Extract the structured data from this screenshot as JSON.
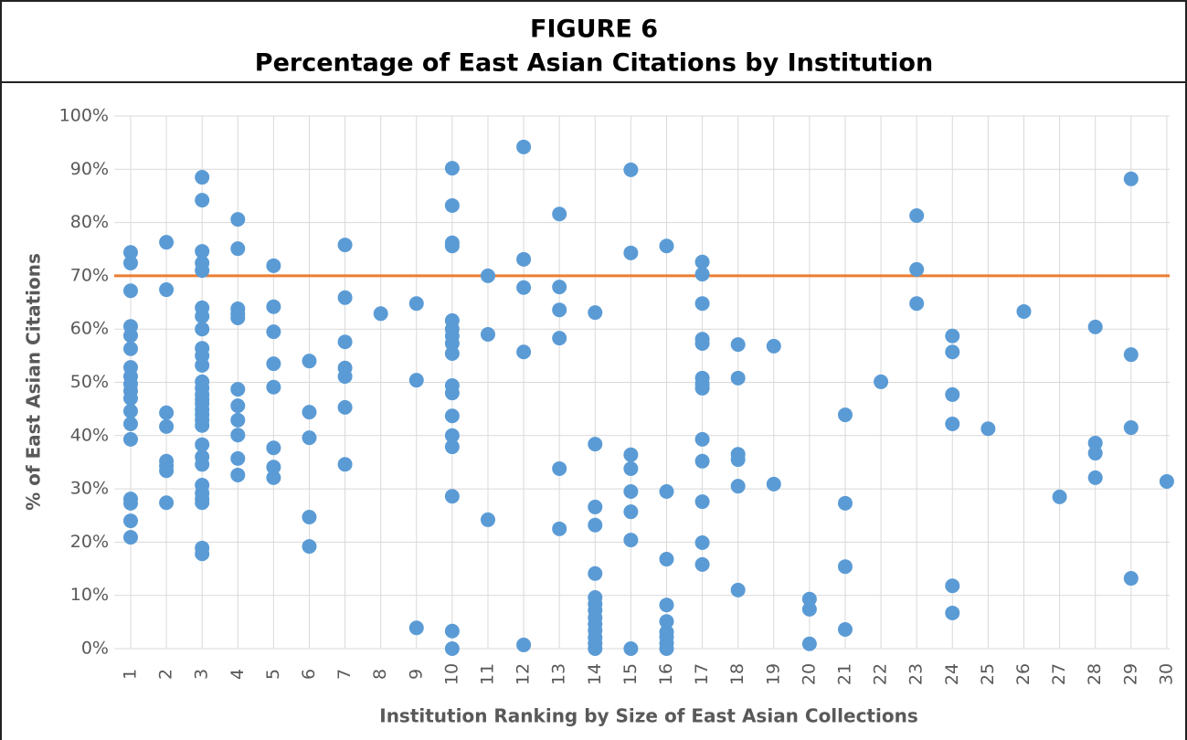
{
  "chart_data": {
    "type": "scatter",
    "figure_label": "FIGURE 6",
    "title": "Percentage of East Asian Citations by Institution",
    "x_label": "Institution Ranking by Size of East Asian Collections",
    "y_label": "% of East Asian Citations",
    "color": "#5b9bd5",
    "reference_line": {
      "value": 70,
      "color": "#ed7d31"
    },
    "grid": true,
    "xlim": [
      0.54,
      30.08
    ],
    "ylim": [
      0,
      100
    ],
    "xticks": [
      1,
      2,
      3,
      4,
      5,
      6,
      7,
      8,
      9,
      10,
      11,
      12,
      13,
      14,
      15,
      16,
      17,
      18,
      19,
      20,
      21,
      22,
      23,
      24,
      25,
      26,
      27,
      28,
      29,
      30
    ],
    "yticks": [
      {
        "value": 0,
        "label": "0%"
      },
      {
        "value": 10,
        "label": "10%"
      },
      {
        "value": 20,
        "label": "20%"
      },
      {
        "value": 30,
        "label": "30%"
      },
      {
        "value": 40,
        "label": "40%"
      },
      {
        "value": 50,
        "label": "50%"
      },
      {
        "value": 60,
        "label": "60%"
      },
      {
        "value": 70,
        "label": "70%"
      },
      {
        "value": 80,
        "label": "80%"
      },
      {
        "value": 90,
        "label": "90%"
      },
      {
        "value": 100,
        "label": "100%"
      }
    ],
    "x": [
      1,
      1,
      1,
      1,
      1,
      1,
      1,
      1,
      1,
      1,
      1,
      1,
      1,
      1,
      1,
      1,
      1,
      1,
      2,
      2,
      2,
      2,
      2,
      2,
      2,
      2,
      3,
      3,
      3,
      3,
      3,
      3,
      3,
      3,
      3,
      3,
      3,
      3,
      3,
      3,
      3,
      3,
      3,
      3,
      3,
      3,
      3,
      3,
      3,
      3,
      3,
      3,
      3,
      3,
      3,
      4,
      4,
      4,
      4,
      4,
      4,
      4,
      4,
      4,
      4,
      4,
      5,
      5,
      5,
      5,
      5,
      5,
      5,
      5,
      6,
      6,
      6,
      6,
      6,
      7,
      7,
      7,
      7,
      7,
      7,
      7,
      8,
      9,
      9,
      9,
      10,
      10,
      10,
      10,
      10,
      10,
      10,
      10,
      10,
      10,
      10,
      10,
      10,
      10,
      10,
      10,
      10,
      11,
      11,
      11,
      12,
      12,
      12,
      12,
      12,
      13,
      13,
      13,
      13,
      13,
      13,
      14,
      14,
      14,
      14,
      14,
      14,
      14,
      14,
      14,
      14,
      14,
      14,
      14,
      14,
      15,
      15,
      15,
      15,
      15,
      15,
      15,
      15,
      16,
      16,
      16,
      16,
      16,
      16,
      16,
      16,
      16,
      17,
      17,
      17,
      17,
      17,
      17,
      17,
      17,
      17,
      17,
      17,
      17,
      17,
      18,
      18,
      18,
      18,
      18,
      18,
      19,
      19,
      20,
      20,
      20,
      21,
      21,
      21,
      21,
      22,
      23,
      23,
      23,
      24,
      24,
      24,
      24,
      24,
      24,
      25,
      26,
      27,
      28,
      28,
      28,
      28,
      29,
      29,
      29,
      29,
      30
    ],
    "y": [
      74.4,
      72.4,
      67.2,
      60.5,
      58.8,
      56.3,
      52.8,
      51.1,
      49.7,
      48.4,
      47,
      44.6,
      42.2,
      39.3,
      28.1,
      27.3,
      24,
      20.9,
      76.3,
      67.4,
      44.3,
      41.7,
      35.2,
      34.3,
      33.4,
      27.4,
      88.5,
      84.2,
      74.6,
      72.4,
      71,
      64,
      62.4,
      60,
      56.4,
      55,
      53.2,
      50.1,
      48.9,
      47.7,
      46.8,
      46,
      44.9,
      43.9,
      42.9,
      41.9,
      38.3,
      36,
      34.6,
      30.7,
      29.2,
      28.1,
      27.4,
      18.9,
      17.8,
      80.6,
      75.1,
      63.8,
      62.9,
      62.1,
      48.7,
      45.6,
      42.9,
      40.1,
      35.7,
      32.6,
      71.9,
      64.2,
      59.5,
      53.5,
      49.1,
      37.7,
      34.1,
      32.1,
      54,
      44.4,
      39.6,
      24.7,
      19.2,
      75.8,
      65.9,
      57.6,
      52.7,
      51.1,
      45.3,
      34.6,
      62.9,
      64.8,
      50.4,
      3.9,
      90.2,
      83.2,
      76.2,
      75.6,
      61.6,
      60,
      58.7,
      57.3,
      55.4,
      49.4,
      48,
      43.7,
      40,
      37.9,
      28.6,
      3.3,
      0,
      70,
      59,
      24.2,
      94.2,
      73.1,
      67.8,
      55.7,
      0.7,
      81.6,
      67.9,
      63.6,
      58.3,
      33.8,
      22.5,
      63.1,
      38.4,
      26.6,
      23.2,
      14.1,
      9.6,
      8.4,
      7.2,
      5.8,
      4.6,
      3.4,
      2.1,
      1,
      0,
      89.9,
      74.3,
      36.4,
      33.8,
      29.5,
      25.7,
      20.4,
      0,
      75.6,
      29.5,
      16.8,
      8.2,
      5.1,
      3.1,
      2.2,
      1,
      0,
      72.6,
      70.3,
      64.8,
      58.1,
      57.3,
      50.8,
      49.7,
      48.9,
      39.3,
      35.2,
      27.6,
      19.9,
      15.8,
      57.1,
      50.8,
      36.5,
      35.5,
      30.5,
      11,
      56.8,
      30.9,
      9.3,
      7.4,
      0.9,
      43.9,
      27.3,
      15.4,
      3.6,
      50.1,
      81.3,
      71.2,
      64.8,
      58.7,
      55.7,
      47.7,
      42.2,
      11.8,
      6.7,
      41.3,
      63.3,
      28.5,
      60.4,
      38.6,
      36.7,
      32.1,
      88.2,
      55.2,
      41.5,
      13.2,
      31.4
    ]
  }
}
